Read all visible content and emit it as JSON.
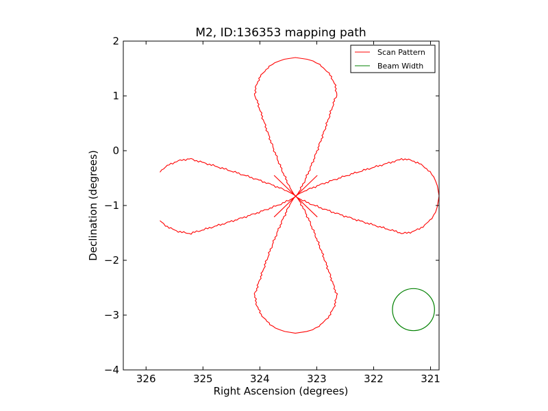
{
  "chart_data": {
    "type": "line",
    "title": "M2, ID:136353 mapping path",
    "xlabel": "Right Ascension (degrees)",
    "ylabel": "Declination (degrees)",
    "xlim": [
      326.4,
      320.85
    ],
    "ylim": [
      -4,
      2
    ],
    "x_inverted": true,
    "xticks": [
      326,
      325,
      324,
      323,
      322,
      321
    ],
    "xtick_labels": [
      "326",
      "325",
      "324",
      "323",
      "322",
      "321"
    ],
    "yticks": [
      2,
      1,
      0,
      -1,
      -2,
      -3,
      -4
    ],
    "ytick_labels": [
      "2",
      "1",
      "0",
      "−1",
      "−2",
      "−3",
      "−4"
    ],
    "grid": false,
    "legend_position": "top-right",
    "series": [
      {
        "name": "Scan Pattern",
        "color": "#ff0000",
        "kind": "rose",
        "center": [
          323.37,
          -0.83
        ],
        "petals": [
          {
            "direction": "up",
            "tip": [
              323.37,
              1.7
            ],
            "half_width_deg": 0.72,
            "max_at_fraction": 0.72
          },
          {
            "direction": "right",
            "tip": [
              320.85,
              -0.83
            ],
            "half_width_dec": 0.68,
            "max_at_fraction": 0.73
          },
          {
            "direction": "down",
            "tip": [
              323.37,
              -3.33
            ],
            "half_width_deg": 0.72,
            "max_at_fraction": 0.7
          },
          {
            "direction": "left",
            "tip": [
              325.95,
              -0.83
            ],
            "half_width_dec": 0.68,
            "max_at_fraction": 0.7,
            "open_start": [
              325.6,
              -0.3
            ],
            "open_end": [
              325.87,
              -0.77
            ]
          }
        ]
      },
      {
        "name": "Beam Width",
        "color": "#008000",
        "kind": "circle",
        "center": [
          321.3,
          -2.9
        ],
        "radius_deg": 0.37
      }
    ]
  }
}
